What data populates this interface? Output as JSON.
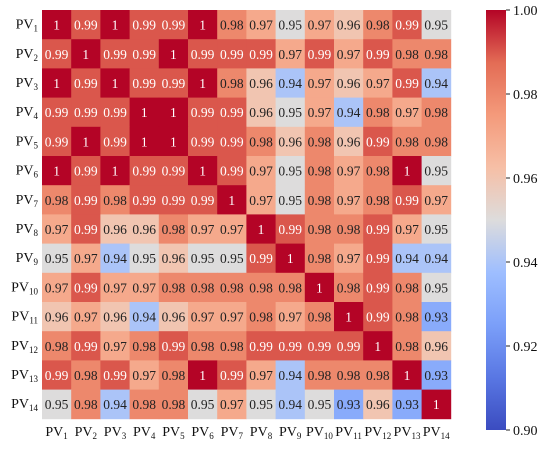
{
  "chart_data": {
    "type": "heatmap",
    "row_labels": [
      {
        "main": "PV",
        "sub": "1"
      },
      {
        "main": "PV",
        "sub": "2"
      },
      {
        "main": "PV",
        "sub": "3"
      },
      {
        "main": "PV",
        "sub": "4"
      },
      {
        "main": "PV",
        "sub": "5"
      },
      {
        "main": "PV",
        "sub": "6"
      },
      {
        "main": "PV",
        "sub": "7"
      },
      {
        "main": "PV",
        "sub": "8"
      },
      {
        "main": "PV",
        "sub": "9"
      },
      {
        "main": "PV",
        "sub": "10"
      },
      {
        "main": "PV",
        "sub": "11"
      },
      {
        "main": "PV",
        "sub": "12"
      },
      {
        "main": "PV",
        "sub": "13"
      },
      {
        "main": "PV",
        "sub": "14"
      }
    ],
    "col_labels": [
      {
        "main": "PV",
        "sub": "1"
      },
      {
        "main": "PV",
        "sub": "2"
      },
      {
        "main": "PV",
        "sub": "3"
      },
      {
        "main": "PV",
        "sub": "4"
      },
      {
        "main": "PV",
        "sub": "5"
      },
      {
        "main": "PV",
        "sub": "6"
      },
      {
        "main": "PV",
        "sub": "7"
      },
      {
        "main": "PV",
        "sub": "8"
      },
      {
        "main": "PV",
        "sub": "9"
      },
      {
        "main": "PV",
        "sub": "10"
      },
      {
        "main": "PV",
        "sub": "11"
      },
      {
        "main": "PV",
        "sub": "12"
      },
      {
        "main": "PV",
        "sub": "13"
      },
      {
        "main": "PV",
        "sub": "14"
      }
    ],
    "values": [
      [
        1,
        0.99,
        1,
        0.99,
        0.99,
        1,
        0.98,
        0.97,
        0.95,
        0.97,
        0.96,
        0.98,
        0.99,
        0.95
      ],
      [
        0.99,
        1,
        0.99,
        0.99,
        1,
        0.99,
        0.99,
        0.99,
        0.97,
        0.99,
        0.97,
        0.99,
        0.98,
        0.98
      ],
      [
        1,
        0.99,
        1,
        0.99,
        0.99,
        1,
        0.98,
        0.96,
        0.94,
        0.97,
        0.96,
        0.97,
        0.99,
        0.94
      ],
      [
        0.99,
        0.99,
        0.99,
        1,
        1,
        0.99,
        0.99,
        0.96,
        0.95,
        0.97,
        0.94,
        0.98,
        0.97,
        0.98
      ],
      [
        0.99,
        1,
        0.99,
        1,
        1,
        0.99,
        0.99,
        0.98,
        0.96,
        0.98,
        0.96,
        0.99,
        0.98,
        0.98
      ],
      [
        1,
        0.99,
        1,
        0.99,
        0.99,
        1,
        0.99,
        0.97,
        0.95,
        0.98,
        0.97,
        0.98,
        1,
        0.95
      ],
      [
        0.98,
        0.99,
        0.98,
        0.99,
        0.99,
        0.99,
        1,
        0.97,
        0.95,
        0.98,
        0.97,
        0.98,
        0.99,
        0.97
      ],
      [
        0.97,
        0.99,
        0.96,
        0.96,
        0.98,
        0.97,
        0.97,
        1,
        0.99,
        0.98,
        0.98,
        0.99,
        0.97,
        0.95
      ],
      [
        0.95,
        0.97,
        0.94,
        0.95,
        0.96,
        0.95,
        0.95,
        0.99,
        1,
        0.98,
        0.97,
        0.99,
        0.94,
        0.94
      ],
      [
        0.97,
        0.99,
        0.97,
        0.97,
        0.98,
        0.98,
        0.98,
        0.98,
        0.98,
        1,
        0.98,
        0.99,
        0.98,
        0.95
      ],
      [
        0.96,
        0.97,
        0.96,
        0.94,
        0.96,
        0.97,
        0.97,
        0.98,
        0.97,
        0.98,
        1,
        0.99,
        0.98,
        0.93
      ],
      [
        0.98,
        0.99,
        0.97,
        0.98,
        0.99,
        0.98,
        0.98,
        0.99,
        0.99,
        0.99,
        0.99,
        1,
        0.98,
        0.96
      ],
      [
        0.99,
        0.98,
        0.99,
        0.97,
        0.98,
        1,
        0.99,
        0.97,
        0.94,
        0.98,
        0.98,
        0.98,
        1,
        0.93
      ],
      [
        0.95,
        0.98,
        0.94,
        0.98,
        0.98,
        0.95,
        0.97,
        0.95,
        0.94,
        0.95,
        0.93,
        0.96,
        0.93,
        1
      ]
    ],
    "value_range": [
      0.9,
      1.0
    ],
    "colormap": "coolwarm",
    "colormap_low": "#3b4cc0",
    "colormap_mid": "#dddcdc",
    "colormap_high": "#b40426",
    "colorbar_ticks": [
      "1.00",
      "0.98",
      "0.96",
      "0.94",
      "0.92",
      "0.90"
    ],
    "colorbar_tick_values": [
      1.0,
      0.98,
      0.96,
      0.94,
      0.92,
      0.9
    ],
    "grid": false,
    "legend": "colorbar-right"
  }
}
